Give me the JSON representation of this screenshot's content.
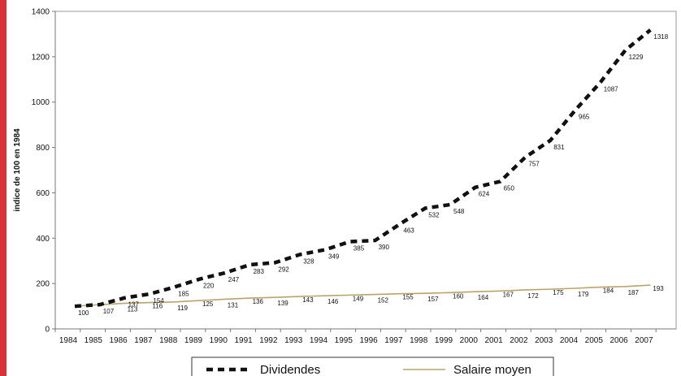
{
  "colors": {
    "accent_bar": "#d9323a",
    "dividendes": "#111111",
    "salaire": "#b8a46a",
    "axis": "#777777"
  },
  "chart_data": {
    "type": "line",
    "ylabel": "indice de 100 en 1984",
    "xlabel": "",
    "ylim": [
      0,
      1400
    ],
    "yticks": [
      0,
      200,
      400,
      600,
      800,
      1000,
      1200,
      1400
    ],
    "x": [
      "1984",
      "1985",
      "1986",
      "1987",
      "1988",
      "1989",
      "1990",
      "1991",
      "1992",
      "1993",
      "1994",
      "1995",
      "1996",
      "1997",
      "1998",
      "1999",
      "2000",
      "2001",
      "2002",
      "2003",
      "2004",
      "2005",
      "2006",
      "2007"
    ],
    "grid": false,
    "legend_position": "bottom",
    "series": [
      {
        "name": "Dividendes",
        "style": "dashed",
        "values": [
          100,
          107,
          137,
          154,
          185,
          220,
          247,
          283,
          292,
          328,
          349,
          385,
          390,
          463,
          532,
          548,
          624,
          650,
          757,
          831,
          965,
          1087,
          1229,
          1318
        ],
        "labels": [
          "100",
          "107",
          "137",
          "154",
          "185",
          "220",
          "247",
          "283",
          "292",
          "328",
          "349",
          "385",
          "390",
          "463",
          "532",
          "548",
          "624",
          "650",
          "757",
          "831",
          "965",
          "1087",
          "1229",
          "1318"
        ]
      },
      {
        "name": "Salaire moyen",
        "style": "solid",
        "values": [
          100,
          107,
          113,
          116,
          119,
          125,
          131,
          136,
          139,
          143,
          146,
          149,
          152,
          155,
          157,
          160,
          164,
          167,
          172,
          175,
          179,
          184,
          187,
          193
        ],
        "labels": [
          "",
          "",
          "113",
          "116",
          "119",
          "125",
          "131",
          "136",
          "139",
          "143",
          "146",
          "149",
          "152",
          "155",
          "157",
          "160",
          "164",
          "167",
          "172",
          "175",
          "179",
          "184",
          "187",
          "193"
        ]
      }
    ]
  }
}
